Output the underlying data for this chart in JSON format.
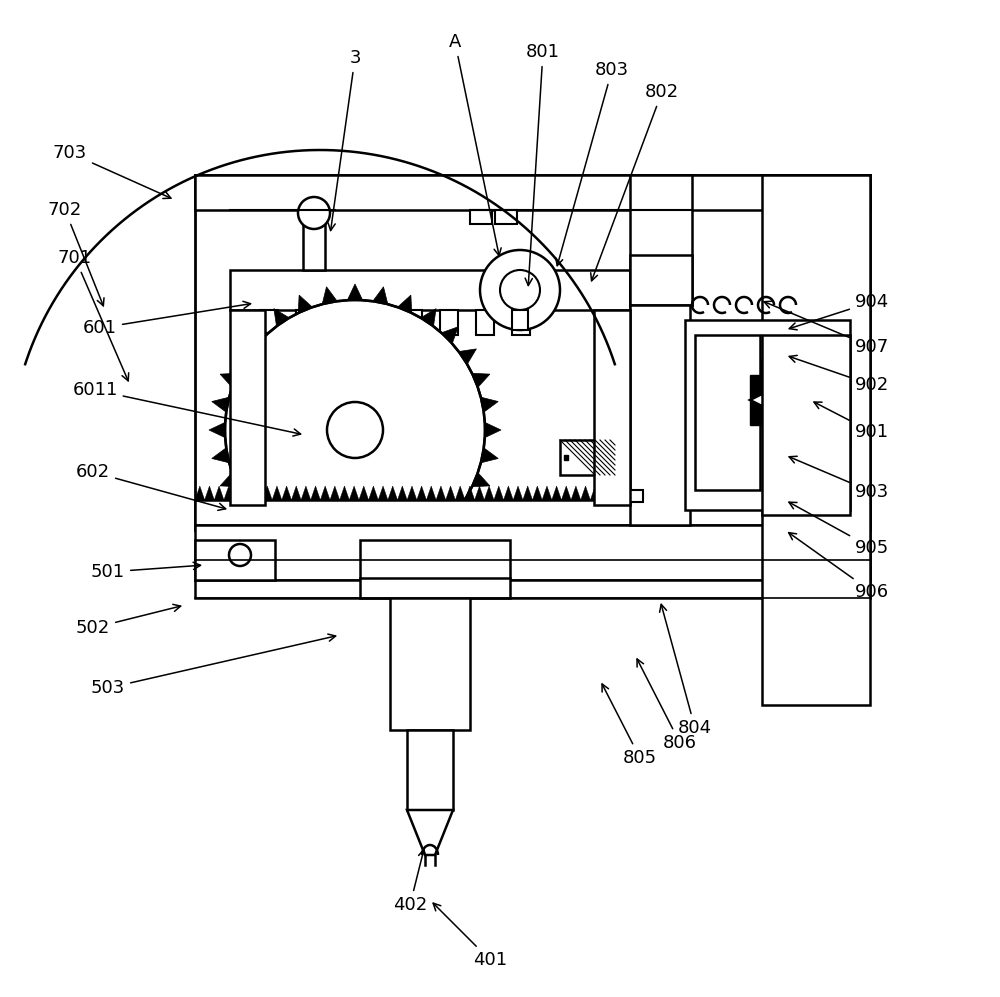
{
  "bg_color": "#ffffff",
  "line_color": "#000000",
  "lw": 1.8,
  "annotations": [
    [
      "401",
      490,
      960,
      430,
      900
    ],
    [
      "402",
      410,
      905,
      425,
      845
    ],
    [
      "3",
      355,
      58,
      330,
      235
    ],
    [
      "A",
      455,
      42,
      500,
      260
    ],
    [
      "501",
      108,
      572,
      205,
      565
    ],
    [
      "502",
      93,
      628,
      185,
      605
    ],
    [
      "503",
      108,
      688,
      340,
      635
    ],
    [
      "601",
      100,
      328,
      255,
      303
    ],
    [
      "6011",
      95,
      390,
      305,
      435
    ],
    [
      "602",
      93,
      472,
      230,
      510
    ],
    [
      "701",
      75,
      258,
      130,
      385
    ],
    [
      "702",
      65,
      210,
      105,
      310
    ],
    [
      "703",
      70,
      153,
      175,
      200
    ],
    [
      "801",
      543,
      52,
      528,
      290
    ],
    [
      "802",
      662,
      92,
      590,
      285
    ],
    [
      "803",
      612,
      70,
      556,
      270
    ],
    [
      "804",
      695,
      728,
      660,
      600
    ],
    [
      "805",
      640,
      758,
      600,
      680
    ],
    [
      "806",
      680,
      743,
      635,
      655
    ],
    [
      "901",
      872,
      432,
      810,
      400
    ],
    [
      "902",
      872,
      385,
      785,
      355
    ],
    [
      "903",
      872,
      492,
      785,
      455
    ],
    [
      "904",
      872,
      302,
      785,
      330
    ],
    [
      "905",
      872,
      548,
      785,
      500
    ],
    [
      "906",
      872,
      592,
      785,
      530
    ],
    [
      "907",
      872,
      347,
      760,
      300
    ]
  ]
}
